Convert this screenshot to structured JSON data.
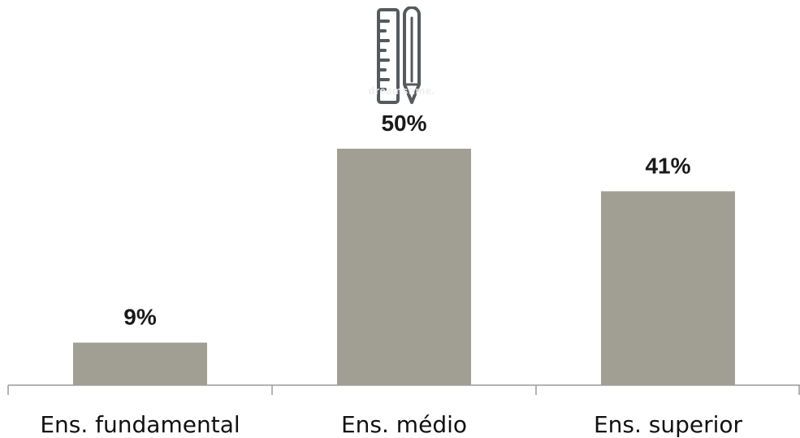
{
  "colors": {
    "bar": "#a19f93",
    "axis": "#9a9a9a",
    "icon": "#555a5e",
    "text": "#1a1a1a"
  },
  "icon": {
    "name": "ruler-pencil-icon"
  },
  "watermark": "dreamstime.",
  "chart_data": {
    "type": "bar",
    "categories": [
      "Ens. fundamental",
      "Ens. médio",
      "Ens. superior"
    ],
    "values": [
      9,
      50,
      41
    ],
    "value_labels": [
      "9%",
      "50%",
      "41%"
    ],
    "ylim": [
      0,
      100
    ],
    "title": "",
    "xlabel": "",
    "ylabel": "",
    "grid": false,
    "legend": "none"
  }
}
